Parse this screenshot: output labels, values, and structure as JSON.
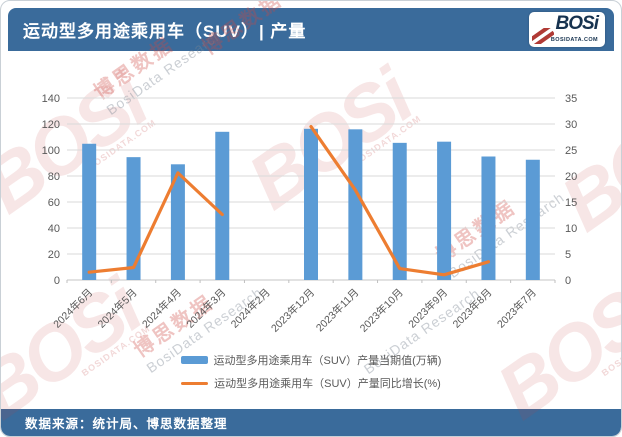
{
  "header": {
    "title": "运动型多用途乘用车（SUV）| 产量",
    "logo": {
      "text": "BOSi",
      "subtext": "BOSIDATA.COM"
    }
  },
  "watermark": {
    "logo_text": "BOSi",
    "logo_sub": "BOSIDATA.COM",
    "cn_text": "博思数据",
    "en_text": "BosiData Research"
  },
  "legend": {
    "bar_label": "运动型多用途乘用车（SUV）产量当期值(万辆)",
    "line_label": "运动型多用途乘用车（SUV）产量同比增长(%)"
  },
  "footer": {
    "source_text": "数据来源：统计局、博思数据整理"
  },
  "colors": {
    "header_bar": "#3A6B9B",
    "bar_series": "#5B9BD5",
    "line_series": "#ED7D31",
    "gridline": "#D9D9D9",
    "axis_text": "#595959",
    "watermark_red": "#C0504D"
  },
  "chart_data": {
    "type": "bar+line",
    "title": "运动型多用途乘用车（SUV）产量",
    "categories": [
      "2024年6月",
      "2024年5月",
      "2024年4月",
      "2024年3月",
      "2024年2月",
      "2023年12月",
      "2023年11月",
      "2023年10月",
      "2023年9月",
      "2023年8月",
      "2023年7月"
    ],
    "series": [
      {
        "name": "运动型多用途乘用车（SUV）产量当期值(万辆)",
        "type": "bar",
        "axis": "left",
        "color": "#5B9BD5",
        "values": [
          104.8,
          94.5,
          89.0,
          114.0,
          null,
          116.3,
          115.9,
          105.5,
          106.4,
          95.0,
          92.5
        ]
      },
      {
        "name": "运动型多用途乘用车（SUV）产量同比增长(%)",
        "type": "line",
        "axis": "right",
        "color": "#ED7D31",
        "values": [
          1.5,
          2.4,
          20.6,
          12.6,
          null,
          29.5,
          17.3,
          2.2,
          1.0,
          3.5,
          null
        ]
      }
    ],
    "left_axis": {
      "min": 0,
      "max": 140,
      "step": 20,
      "ticks": [
        0,
        20,
        40,
        60,
        80,
        100,
        120,
        140
      ]
    },
    "right_axis": {
      "min": 0,
      "max": 35,
      "step": 5,
      "ticks": [
        0,
        5,
        10,
        15,
        20,
        25,
        30,
        35
      ]
    },
    "grid": true,
    "legend_position": "bottom"
  }
}
